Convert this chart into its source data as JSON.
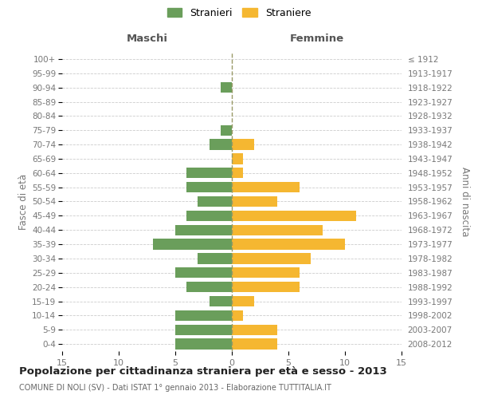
{
  "age_groups": [
    "0-4",
    "5-9",
    "10-14",
    "15-19",
    "20-24",
    "25-29",
    "30-34",
    "35-39",
    "40-44",
    "45-49",
    "50-54",
    "55-59",
    "60-64",
    "65-69",
    "70-74",
    "75-79",
    "80-84",
    "85-89",
    "90-94",
    "95-99",
    "100+"
  ],
  "birth_years": [
    "2008-2012",
    "2003-2007",
    "1998-2002",
    "1993-1997",
    "1988-1992",
    "1983-1987",
    "1978-1982",
    "1973-1977",
    "1968-1972",
    "1963-1967",
    "1958-1962",
    "1953-1957",
    "1948-1952",
    "1943-1947",
    "1938-1942",
    "1933-1937",
    "1928-1932",
    "1923-1927",
    "1918-1922",
    "1913-1917",
    "≤ 1912"
  ],
  "maschi": [
    5,
    5,
    5,
    2,
    4,
    5,
    3,
    7,
    5,
    4,
    3,
    4,
    4,
    0,
    2,
    1,
    0,
    0,
    1,
    0,
    0
  ],
  "femmine": [
    4,
    4,
    1,
    2,
    6,
    6,
    7,
    10,
    8,
    11,
    4,
    6,
    1,
    1,
    2,
    0,
    0,
    0,
    0,
    0,
    0
  ],
  "color_maschi": "#6a9e5b",
  "color_femmine": "#f5b731",
  "title": "Popolazione per cittadinanza straniera per età e sesso - 2013",
  "subtitle": "COMUNE DI NOLI (SV) - Dati ISTAT 1° gennaio 2013 - Elaborazione TUTTITALIA.IT",
  "xlabel_left": "Maschi",
  "xlabel_right": "Femmine",
  "ylabel_left": "Fasce di età",
  "ylabel_right": "Anni di nascita",
  "legend_maschi": "Stranieri",
  "legend_femmine": "Straniere",
  "xlim": 15,
  "background_color": "#ffffff",
  "grid_color": "#cccccc",
  "bar_height": 0.75,
  "label_color": "#777777",
  "center_line_color": "#999966"
}
